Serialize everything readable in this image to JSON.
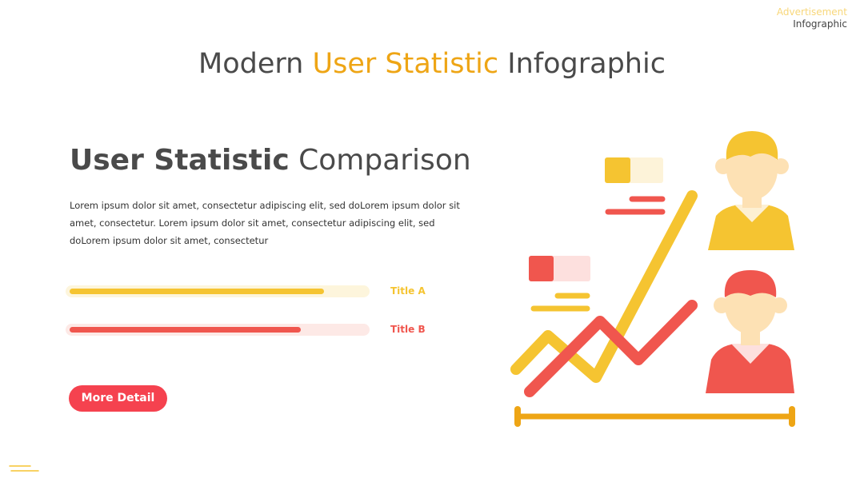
{
  "header": {
    "tag_top": "Advertisement",
    "tag_bottom": "Infographic",
    "title_start": "Modern ",
    "title_highlight": "User Statistic",
    "title_end": " Infographic"
  },
  "content": {
    "heading_bold": "User Statistic",
    "heading_light": " Comparison",
    "paragraph": "Lorem ipsum dolor sit amet, consectetur adipiscing elit, sed doLorem ipsum dolor sit amet, consectetur. Lorem ipsum dolor sit amet, consectetur adipiscing elit, sed doLorem ipsum dolor sit amet, consectetur",
    "bars": {
      "xlim": [
        0,
        100
      ],
      "items": [
        {
          "label": "Title A",
          "value": 86,
          "color": "#f5c431",
          "track": "#fdf5dc"
        },
        {
          "label": "Title B",
          "value": 78,
          "color": "#f0564e",
          "track": "#fde9e6"
        }
      ]
    },
    "button": "More Detail"
  }
}
